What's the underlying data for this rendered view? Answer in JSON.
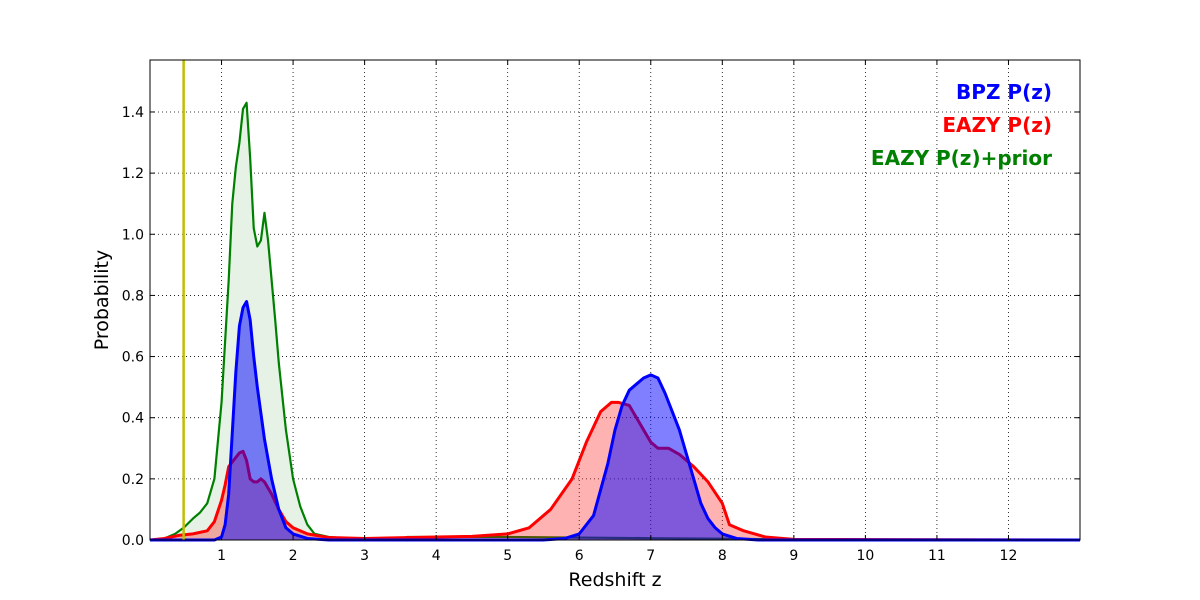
{
  "chart_data": {
    "type": "area",
    "xlabel": "Redshift z",
    "ylabel": "Probability",
    "xlim": [
      0,
      13
    ],
    "ylim": [
      0,
      1.57
    ],
    "grid": true,
    "legend_position": "top-right",
    "x_ticks": [
      1,
      2,
      3,
      4,
      5,
      6,
      7,
      8,
      9,
      10,
      11,
      12
    ],
    "y_ticks": [
      0.0,
      0.2,
      0.4,
      0.6,
      0.8,
      1.0,
      1.2,
      1.4
    ],
    "vline": {
      "x": 0.47,
      "color": "#bfbf00"
    },
    "series": [
      {
        "name": "EAZY P(z)+prior",
        "color": "#008000",
        "fill": "#e5f2e5",
        "fill_opacity": 1,
        "x": [
          0,
          0.2,
          0.35,
          0.47,
          0.6,
          0.7,
          0.8,
          0.9,
          1.0,
          1.1,
          1.15,
          1.2,
          1.25,
          1.3,
          1.35,
          1.4,
          1.45,
          1.5,
          1.55,
          1.6,
          1.65,
          1.7,
          1.75,
          1.8,
          1.9,
          2.0,
          2.1,
          2.2,
          2.3,
          2.5,
          2.8,
          3.0,
          3.5,
          3.6,
          4.0,
          5.0,
          6.0,
          7.0,
          8.0,
          9.0,
          10.0,
          13.0
        ],
        "values": [
          0,
          0.005,
          0.02,
          0.04,
          0.07,
          0.09,
          0.12,
          0.2,
          0.45,
          0.85,
          1.1,
          1.22,
          1.3,
          1.41,
          1.43,
          1.25,
          1.02,
          0.96,
          0.98,
          1.07,
          0.98,
          0.85,
          0.72,
          0.58,
          0.36,
          0.2,
          0.11,
          0.05,
          0.02,
          0.01,
          0.004,
          0.002,
          0.004,
          0.01,
          0.01,
          0.01,
          0.008,
          0.006,
          0.004,
          0.002,
          0.001,
          0.0
        ]
      },
      {
        "name": "EAZY P(z)",
        "color": "#ff0000",
        "fill": "#ff0000",
        "fill_opacity": 0.3,
        "x": [
          0,
          0.2,
          0.4,
          0.6,
          0.8,
          0.9,
          1.0,
          1.05,
          1.1,
          1.2,
          1.25,
          1.3,
          1.35,
          1.4,
          1.45,
          1.5,
          1.55,
          1.6,
          1.7,
          1.8,
          1.9,
          2.0,
          2.2,
          2.5,
          3.0,
          4.0,
          4.5,
          5.0,
          5.3,
          5.6,
          5.9,
          6.1,
          6.3,
          6.45,
          6.55,
          6.7,
          6.9,
          7.0,
          7.1,
          7.15,
          7.25,
          7.4,
          7.6,
          7.8,
          8.0,
          8.1,
          8.3,
          8.6,
          9.0,
          13.0
        ],
        "values": [
          0,
          0.005,
          0.015,
          0.02,
          0.03,
          0.06,
          0.13,
          0.18,
          0.24,
          0.27,
          0.285,
          0.29,
          0.26,
          0.2,
          0.19,
          0.19,
          0.2,
          0.19,
          0.15,
          0.1,
          0.06,
          0.04,
          0.02,
          0.008,
          0.005,
          0.01,
          0.012,
          0.02,
          0.04,
          0.1,
          0.2,
          0.32,
          0.42,
          0.45,
          0.45,
          0.44,
          0.36,
          0.32,
          0.3,
          0.3,
          0.3,
          0.28,
          0.24,
          0.19,
          0.12,
          0.05,
          0.03,
          0.01,
          0.002,
          0.0
        ]
      },
      {
        "name": "BPZ P(z)",
        "color": "#0000ff",
        "fill": "#0000ff",
        "fill_opacity": 0.5,
        "x": [
          0,
          0.9,
          1.0,
          1.05,
          1.1,
          1.15,
          1.2,
          1.25,
          1.3,
          1.35,
          1.4,
          1.45,
          1.5,
          1.6,
          1.7,
          1.8,
          1.9,
          2.0,
          2.2,
          2.5,
          5.5,
          5.8,
          6.0,
          6.2,
          6.4,
          6.5,
          6.6,
          6.7,
          6.8,
          6.9,
          7.0,
          7.1,
          7.2,
          7.3,
          7.4,
          7.5,
          7.6,
          7.7,
          7.8,
          7.9,
          8.0,
          8.2,
          8.5,
          13.0
        ],
        "values": [
          0,
          0,
          0.01,
          0.05,
          0.15,
          0.35,
          0.55,
          0.7,
          0.76,
          0.78,
          0.72,
          0.6,
          0.5,
          0.33,
          0.2,
          0.1,
          0.04,
          0.02,
          0.005,
          0.0,
          0.0,
          0.005,
          0.02,
          0.08,
          0.25,
          0.36,
          0.44,
          0.49,
          0.51,
          0.53,
          0.54,
          0.53,
          0.48,
          0.42,
          0.36,
          0.28,
          0.2,
          0.12,
          0.07,
          0.04,
          0.02,
          0.005,
          0.0,
          0.0
        ]
      }
    ],
    "legend": [
      {
        "label": "BPZ P(z)",
        "color": "#0000ff"
      },
      {
        "label": "EAZY P(z)",
        "color": "#ff0000"
      },
      {
        "label": "EAZY P(z)+prior",
        "color": "#008000"
      }
    ]
  }
}
